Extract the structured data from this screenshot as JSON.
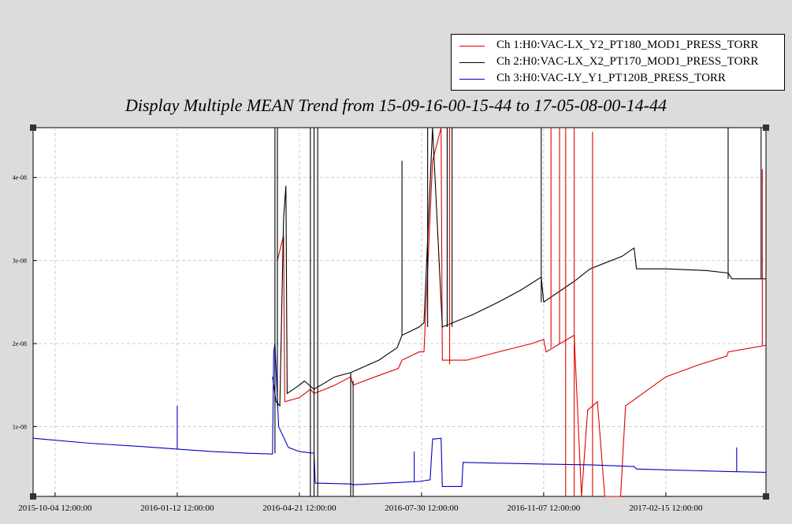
{
  "title": "Display Multiple MEAN Trend from 15-09-16-00-15-44 to 17-05-08-00-14-44",
  "legend": [
    {
      "label": "Ch 1:H0:VAC-LX_Y2_PT180_MOD1_PRESS_TORR",
      "color": "#e00000"
    },
    {
      "label": "Ch 2:H0:VAC-LX_X2_PT170_MOD1_PRESS_TORR",
      "color": "#000000"
    },
    {
      "label": "Ch 3:H0:VAC-LY_Y1_PT120B_PRESS_TORR",
      "color": "#0000c8"
    }
  ],
  "chart_data": {
    "type": "line",
    "title": "Display Multiple MEAN Trend from 15-09-16-00-15-44 to 17-05-08-00-14-44",
    "x_range": [
      "2015-09-16",
      "2017-05-08"
    ],
    "ylim": [
      1.6e-09,
      4.6e-08
    ],
    "grid": true,
    "legend_position": "top-right",
    "x_ticks": [
      {
        "x": "2015-10-04",
        "label": "2015-10-04 12:00:00"
      },
      {
        "x": "2016-01-12",
        "label": "2016-01-12 12:00:00"
      },
      {
        "x": "2016-04-21",
        "label": "2016-04-21 12:00:00"
      },
      {
        "x": "2016-07-30",
        "label": "2016-07-30 12:00:00"
      },
      {
        "x": "2016-11-07",
        "label": "2016-11-07 12:00:00"
      },
      {
        "x": "2017-02-15",
        "label": "2017-02-15 12:00:00"
      }
    ],
    "y_ticks": [
      {
        "y": 1e-08,
        "label": "1e-08"
      },
      {
        "y": 2e-08,
        "label": "2e-08"
      },
      {
        "y": 3e-08,
        "label": "3e-08"
      },
      {
        "y": 4e-08,
        "label": "4e-08"
      }
    ],
    "series": [
      {
        "name": "Ch 1:H0:VAC-LX_Y2_PT180_MOD1_PRESS_TORR",
        "color": "#e00000",
        "points": [
          [
            "2016-04-03",
            3e-08
          ],
          [
            "2016-04-08",
            3.3e-08
          ],
          [
            "2016-04-09",
            1.3e-08
          ],
          [
            "2016-04-21",
            1.35e-08
          ],
          [
            "2016-04-30",
            1.45e-08
          ],
          [
            "2016-05-03",
            1.4e-08
          ],
          [
            "2016-05-12",
            1.45e-08
          ],
          [
            "2016-05-20",
            1.5e-08
          ],
          [
            "2016-06-02",
            1.6e-08
          ],
          [
            "2016-06-04",
            1.5e-08
          ],
          [
            "2016-06-22",
            1.6e-08
          ],
          [
            "2016-07-11",
            1.7e-08
          ],
          [
            "2016-07-14",
            1.8e-08
          ],
          [
            "2016-07-28",
            1.9e-08
          ],
          [
            "2016-08-01",
            1.9e-08
          ],
          [
            "2016-08-08",
            4.2e-08
          ],
          [
            "2016-08-15",
            4.6e-08
          ],
          [
            "2016-08-16",
            1.8e-08
          ],
          [
            "2016-09-05",
            1.8e-08
          ],
          [
            "2016-10-01",
            1.9e-08
          ],
          [
            "2016-10-28",
            2e-08
          ],
          [
            "2016-11-07",
            2.05e-08
          ],
          [
            "2016-11-09",
            1.9e-08
          ],
          [
            "2016-12-02",
            2.1e-08
          ],
          [
            "2016-12-08",
            1.55e-09
          ],
          [
            "2016-12-13",
            1.2e-08
          ],
          [
            "2016-12-21",
            1.3e-08
          ],
          [
            "2016-12-27",
            1.6e-09
          ],
          [
            "2017-01-09",
            1.6e-09
          ],
          [
            "2017-01-13",
            1.25e-08
          ],
          [
            "2017-02-15",
            1.6e-08
          ],
          [
            "2017-03-15",
            1.75e-08
          ],
          [
            "2017-04-06",
            1.85e-08
          ],
          [
            "2017-04-07",
            1.9e-08
          ],
          [
            "2017-05-08",
            1.98e-08
          ]
        ]
      },
      {
        "name": "Ch 2:H0:VAC-LX_X2_PT170_MOD1_PRESS_TORR",
        "color": "#000000",
        "points": [
          [
            "2016-03-30",
            1.6e-08
          ],
          [
            "2016-04-02",
            1.3e-08
          ],
          [
            "2016-04-05",
            1.25e-08
          ],
          [
            "2016-04-08",
            3.5e-08
          ],
          [
            "2016-04-10",
            3.9e-08
          ],
          [
            "2016-04-11",
            1.4e-08
          ],
          [
            "2016-04-21",
            1.5e-08
          ],
          [
            "2016-04-25",
            1.55e-08
          ],
          [
            "2016-05-03",
            1.45e-08
          ],
          [
            "2016-05-20",
            1.6e-08
          ],
          [
            "2016-06-02",
            1.65e-08
          ],
          [
            "2016-06-25",
            1.8e-08
          ],
          [
            "2016-07-10",
            1.95e-08
          ],
          [
            "2016-07-14",
            2.1e-08
          ],
          [
            "2016-07-28",
            2.2e-08
          ],
          [
            "2016-08-01",
            2.25e-08
          ],
          [
            "2016-08-08",
            4.6e-08
          ],
          [
            "2016-08-16",
            2.2e-08
          ],
          [
            "2016-09-10",
            2.35e-08
          ],
          [
            "2016-10-01",
            2.5e-08
          ],
          [
            "2016-10-20",
            2.65e-08
          ],
          [
            "2016-11-05",
            2.8e-08
          ],
          [
            "2016-11-07",
            2.5e-08
          ],
          [
            "2016-12-02",
            2.75e-08
          ],
          [
            "2016-12-15",
            2.9e-08
          ],
          [
            "2017-01-10",
            3.05e-08
          ],
          [
            "2017-01-20",
            3.15e-08
          ],
          [
            "2017-01-22",
            2.9e-08
          ],
          [
            "2017-02-15",
            2.9e-08
          ],
          [
            "2017-03-20",
            2.88e-08
          ],
          [
            "2017-04-07",
            2.85e-08
          ],
          [
            "2017-04-10",
            2.78e-08
          ],
          [
            "2017-05-08",
            2.78e-08
          ]
        ]
      },
      {
        "name": "Ch 3:H0:VAC-LY_Y1_PT120B_PRESS_TORR",
        "color": "#0000c8",
        "points": [
          [
            "2015-09-16",
            8.6e-09
          ],
          [
            "2015-11-01",
            8e-09
          ],
          [
            "2015-12-15",
            7.6e-09
          ],
          [
            "2016-01-12",
            7.3e-09
          ],
          [
            "2016-02-10",
            7e-09
          ],
          [
            "2016-03-10",
            6.8e-09
          ],
          [
            "2016-03-30",
            6.7e-09
          ],
          [
            "2016-03-31",
            1.9e-08
          ],
          [
            "2016-04-01",
            2e-08
          ],
          [
            "2016-04-04",
            1e-08
          ],
          [
            "2016-04-12",
            7.5e-09
          ],
          [
            "2016-04-21",
            7e-09
          ],
          [
            "2016-05-03",
            6.8e-09
          ],
          [
            "2016-05-04",
            3.2e-09
          ],
          [
            "2016-06-02",
            3.1e-09
          ],
          [
            "2016-06-04",
            3e-09
          ],
          [
            "2016-07-28",
            3.4e-09
          ],
          [
            "2016-08-06",
            3.6e-09
          ],
          [
            "2016-08-08",
            8.5e-09
          ],
          [
            "2016-08-15",
            8.6e-09
          ],
          [
            "2016-08-16",
            2.8e-09
          ],
          [
            "2016-09-01",
            2.8e-09
          ],
          [
            "2016-09-02",
            5.7e-09
          ],
          [
            "2016-10-01",
            5.6e-09
          ],
          [
            "2016-11-07",
            5.5e-09
          ],
          [
            "2016-12-15",
            5.4e-09
          ],
          [
            "2017-01-20",
            5.2e-09
          ],
          [
            "2017-01-22",
            4.9e-09
          ],
          [
            "2017-02-15",
            4.8e-09
          ],
          [
            "2017-04-07",
            4.6e-09
          ],
          [
            "2017-05-08",
            4.5e-09
          ]
        ]
      }
    ],
    "spikes": [
      {
        "series": 1,
        "x": "2016-04-01",
        "from": 6.8e-09,
        "to": 4.6e-08
      },
      {
        "series": 1,
        "x": "2016-04-03",
        "from": 1.25e-08,
        "to": 4.6e-08
      },
      {
        "series": 1,
        "x": "2016-04-30",
        "from": 1.6e-09,
        "to": 4.6e-08
      },
      {
        "series": 1,
        "x": "2016-05-03",
        "from": 1.6e-09,
        "to": 4.6e-08
      },
      {
        "series": 1,
        "x": "2016-05-06",
        "from": 1.6e-09,
        "to": 4.6e-08
      },
      {
        "series": 1,
        "x": "2016-06-02",
        "from": 1.6e-09,
        "to": 1.65e-08
      },
      {
        "series": 1,
        "x": "2016-06-04",
        "from": 1.6e-09,
        "to": 1.55e-08
      },
      {
        "series": 1,
        "x": "2016-07-14",
        "from": 2.1e-08,
        "to": 4.2e-08
      },
      {
        "series": 1,
        "x": "2016-08-04",
        "from": 2.2e-08,
        "to": 4.6e-08
      },
      {
        "series": 1,
        "x": "2016-08-20",
        "from": 2.2e-08,
        "to": 4.6e-08
      },
      {
        "series": 1,
        "x": "2016-08-24",
        "from": 2.2e-08,
        "to": 4.6e-08
      },
      {
        "series": 1,
        "x": "2016-11-05",
        "from": 2.5e-08,
        "to": 4.6e-08
      },
      {
        "series": 1,
        "x": "2017-04-07",
        "from": 2.78e-08,
        "to": 4.6e-08
      },
      {
        "series": 1,
        "x": "2017-05-04",
        "from": 2.78e-08,
        "to": 4.6e-08
      },
      {
        "series": 0,
        "x": "2016-08-22",
        "from": 1.75e-08,
        "to": 4.6e-08
      },
      {
        "series": 0,
        "x": "2016-11-13",
        "from": 1.95e-08,
        "to": 4.6e-08
      },
      {
        "series": 0,
        "x": "2016-11-20",
        "from": 2e-08,
        "to": 4.6e-08
      },
      {
        "series": 0,
        "x": "2016-11-25",
        "from": 1.6e-09,
        "to": 4.6e-08
      },
      {
        "series": 0,
        "x": "2016-12-02",
        "from": 1.6e-09,
        "to": 4.6e-08
      },
      {
        "series": 0,
        "x": "2016-12-17",
        "from": 1.6e-09,
        "to": 4.55e-08
      },
      {
        "series": 0,
        "x": "2017-05-05",
        "from": 1.98e-08,
        "to": 4.1e-08
      },
      {
        "series": 2,
        "x": "2016-01-12",
        "from": 7.3e-09,
        "to": 1.25e-08
      },
      {
        "series": 2,
        "x": "2016-07-24",
        "from": 3.4e-09,
        "to": 7e-09
      },
      {
        "series": 2,
        "x": "2017-04-14",
        "from": 4.6e-09,
        "to": 7.5e-09
      }
    ]
  }
}
